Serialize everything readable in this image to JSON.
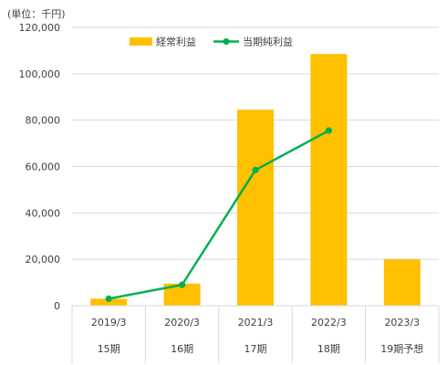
{
  "unit_label": "(単位：千円)",
  "colors": {
    "bar": "#FFC000",
    "line": "#00B050",
    "grid": "#D9D9D9",
    "text": "#404040"
  },
  "chart_data": {
    "type": "bar",
    "categories": [
      "2019/3",
      "2020/3",
      "2021/3",
      "2022/3",
      "2023/3"
    ],
    "periods": [
      "15期",
      "16期",
      "17期",
      "18期",
      "19期予想"
    ],
    "series": [
      {
        "name": "経常利益",
        "type": "bar",
        "values": [
          3000,
          9500,
          84500,
          108500,
          20000
        ]
      },
      {
        "name": "当期純利益",
        "type": "line",
        "values": [
          3000,
          9000,
          58500,
          75500,
          null
        ]
      }
    ],
    "ylim": [
      0,
      120000
    ],
    "yticks": [
      0,
      20000,
      40000,
      60000,
      80000,
      100000,
      120000
    ],
    "ytick_labels": [
      "0",
      "20,000",
      "40,000",
      "60,000",
      "80,000",
      "100,000",
      "120,000"
    ],
    "grid": true,
    "legend": "top"
  }
}
